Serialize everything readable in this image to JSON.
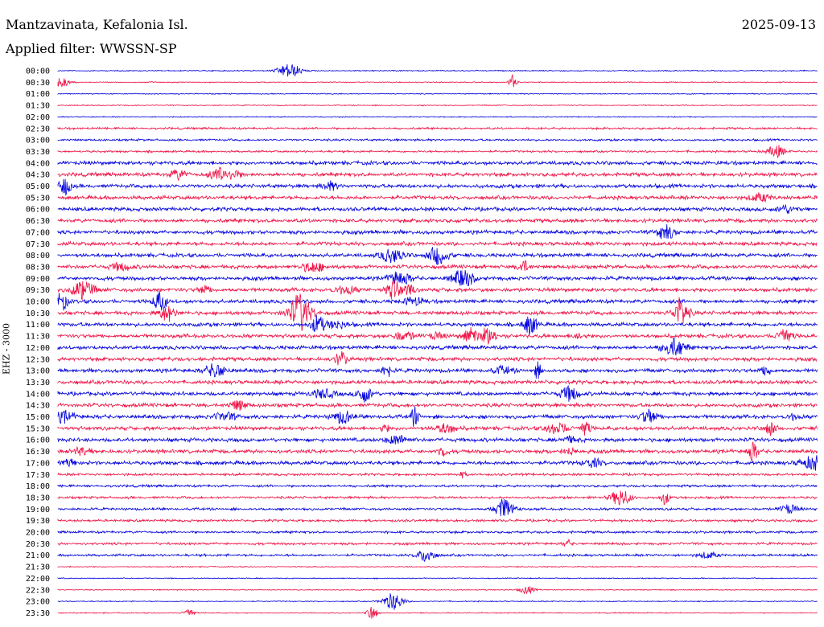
{
  "header": {
    "station": "Mantzavinata, Kefalonia Isl.",
    "date": "2025-09-13",
    "filter": "Applied filter: WWSSN-SP"
  },
  "channel_label": "EHZ - 3000",
  "colors": {
    "trace_a": "#0000dd",
    "trace_b": "#ee1144",
    "background": "#ffffff",
    "text": "#000000"
  },
  "rows": [
    "00:00",
    "00:30",
    "01:00",
    "01:30",
    "02:00",
    "02:30",
    "03:00",
    "03:30",
    "04:00",
    "04:30",
    "05:00",
    "05:30",
    "06:00",
    "06:30",
    "07:00",
    "07:30",
    "08:00",
    "08:30",
    "09:00",
    "09:30",
    "10:00",
    "10:30",
    "11:00",
    "11:30",
    "12:00",
    "12:30",
    "13:00",
    "13:30",
    "14:00",
    "14:30",
    "15:00",
    "15:30",
    "16:00",
    "16:30",
    "17:00",
    "17:30",
    "18:00",
    "18:30",
    "19:00",
    "19:30",
    "20:00",
    "20:30",
    "21:00",
    "21:30",
    "22:00",
    "22:30",
    "23:00",
    "23:30"
  ]
}
